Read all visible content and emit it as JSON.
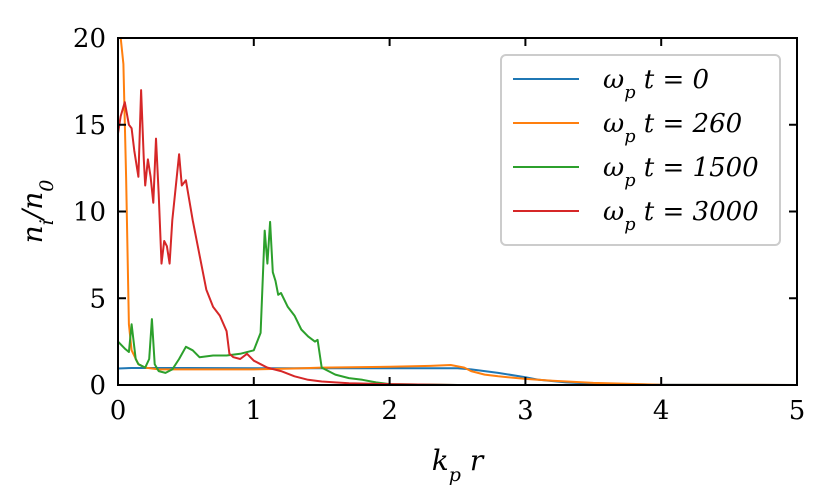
{
  "chart_data": {
    "type": "line",
    "xlabel": "k_p r",
    "ylabel": "n_i/n_0",
    "xlim": [
      0,
      5
    ],
    "ylim": [
      0,
      20
    ],
    "xticks": [
      0,
      1,
      2,
      3,
      4,
      5
    ],
    "yticks": [
      0,
      5,
      10,
      15,
      20
    ],
    "grid": false,
    "legend_position": "top-right",
    "series": [
      {
        "name": "ω_p t = 0",
        "color": "#1f77b4",
        "x": [
          0,
          0.1,
          0.5,
          1.0,
          1.5,
          2.0,
          2.5,
          2.6,
          2.8,
          3.0,
          3.1,
          3.3,
          3.5,
          4.0,
          5.0
        ],
        "y": [
          0.95,
          0.98,
          0.98,
          0.97,
          0.97,
          0.97,
          0.97,
          0.9,
          0.7,
          0.45,
          0.3,
          0.15,
          0.08,
          0.02,
          0.0
        ]
      },
      {
        "name": "ω_p t = 260",
        "color": "#ff7f0e",
        "x": [
          0,
          0.02,
          0.04,
          0.06,
          0.08,
          0.1,
          0.15,
          0.2,
          0.3,
          0.5,
          0.8,
          1.0,
          1.3,
          1.5,
          2.0,
          2.3,
          2.45,
          2.55,
          2.6,
          2.7,
          2.8,
          3.0,
          3.2,
          3.5,
          4.0,
          5.0
        ],
        "y": [
          20.0,
          20.0,
          18.5,
          12.0,
          3.5,
          2.0,
          1.2,
          1.0,
          0.9,
          0.9,
          0.9,
          0.9,
          0.95,
          1.0,
          1.05,
          1.1,
          1.15,
          1.0,
          0.8,
          0.6,
          0.5,
          0.35,
          0.25,
          0.12,
          0.02,
          0.0
        ]
      },
      {
        "name": "ω_p t = 1500",
        "color": "#2ca02c",
        "x": [
          0,
          0.05,
          0.08,
          0.1,
          0.13,
          0.15,
          0.2,
          0.23,
          0.25,
          0.27,
          0.3,
          0.35,
          0.4,
          0.45,
          0.5,
          0.55,
          0.6,
          0.7,
          0.8,
          0.9,
          1.0,
          1.05,
          1.08,
          1.1,
          1.12,
          1.14,
          1.16,
          1.18,
          1.2,
          1.25,
          1.3,
          1.35,
          1.4,
          1.45,
          1.47,
          1.5,
          1.6,
          1.7,
          1.8,
          1.9,
          2.0,
          2.5,
          5.0
        ],
        "y": [
          2.5,
          2.1,
          1.9,
          3.5,
          1.5,
          1.2,
          1.0,
          1.5,
          3.8,
          1.2,
          0.8,
          0.7,
          0.9,
          1.5,
          2.2,
          2.0,
          1.6,
          1.7,
          1.7,
          1.8,
          2.0,
          3.0,
          8.9,
          7.0,
          9.4,
          6.5,
          6.0,
          5.2,
          5.3,
          4.5,
          4.0,
          3.2,
          2.8,
          2.5,
          2.6,
          1.0,
          0.6,
          0.4,
          0.3,
          0.15,
          0.05,
          0.0,
          0.0
        ]
      },
      {
        "name": "ω_p t = 3000",
        "color": "#d62728",
        "x": [
          0,
          0.02,
          0.05,
          0.08,
          0.1,
          0.12,
          0.15,
          0.17,
          0.19,
          0.2,
          0.22,
          0.24,
          0.26,
          0.28,
          0.3,
          0.32,
          0.34,
          0.36,
          0.38,
          0.4,
          0.42,
          0.45,
          0.47,
          0.5,
          0.55,
          0.6,
          0.65,
          0.7,
          0.75,
          0.8,
          0.82,
          0.85,
          0.9,
          0.95,
          1.0,
          1.05,
          1.1,
          1.2,
          1.3,
          1.4,
          1.5,
          1.7,
          2.0,
          2.5,
          3.0,
          5.0
        ],
        "y": [
          14.5,
          15.5,
          16.3,
          15.0,
          14.8,
          13.5,
          12.0,
          17.0,
          13.0,
          11.5,
          13.0,
          12.0,
          10.5,
          14.2,
          11.0,
          7.0,
          8.3,
          8.0,
          7.0,
          9.5,
          11.0,
          13.3,
          11.5,
          11.8,
          9.5,
          7.5,
          5.5,
          4.5,
          4.0,
          3.1,
          1.8,
          1.6,
          1.5,
          1.8,
          1.4,
          1.2,
          1.0,
          0.8,
          0.5,
          0.3,
          0.2,
          0.1,
          0.05,
          0.0,
          0.0,
          0.0
        ]
      }
    ]
  }
}
